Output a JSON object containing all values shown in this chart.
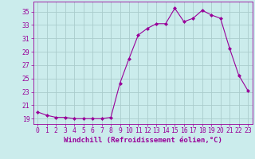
{
  "x": [
    0,
    1,
    2,
    3,
    4,
    5,
    6,
    7,
    8,
    9,
    10,
    11,
    12,
    13,
    14,
    15,
    16,
    17,
    18,
    19,
    20,
    21,
    22,
    23
  ],
  "y": [
    20.0,
    19.5,
    19.2,
    19.2,
    19.0,
    19.0,
    19.0,
    19.0,
    19.2,
    24.3,
    28.0,
    31.5,
    32.5,
    33.2,
    33.2,
    35.5,
    33.5,
    34.0,
    35.2,
    34.5,
    34.0,
    29.5,
    25.5,
    23.2
  ],
  "line_color": "#990099",
  "marker": "D",
  "marker_size": 2.0,
  "bg_color": "#cbecec",
  "grid_color": "#aacccc",
  "xlabel": "Windchill (Refroidissement éolien,°C)",
  "ylabel_ticks": [
    19,
    21,
    23,
    25,
    27,
    29,
    31,
    33,
    35
  ],
  "ylim": [
    18.2,
    36.5
  ],
  "xlim": [
    -0.5,
    23.5
  ],
  "xticks": [
    0,
    1,
    2,
    3,
    4,
    5,
    6,
    7,
    8,
    9,
    10,
    11,
    12,
    13,
    14,
    15,
    16,
    17,
    18,
    19,
    20,
    21,
    22,
    23
  ],
  "axis_color": "#990099",
  "tick_color": "#990099",
  "label_fontsize": 6.5,
  "tick_fontsize": 5.8
}
